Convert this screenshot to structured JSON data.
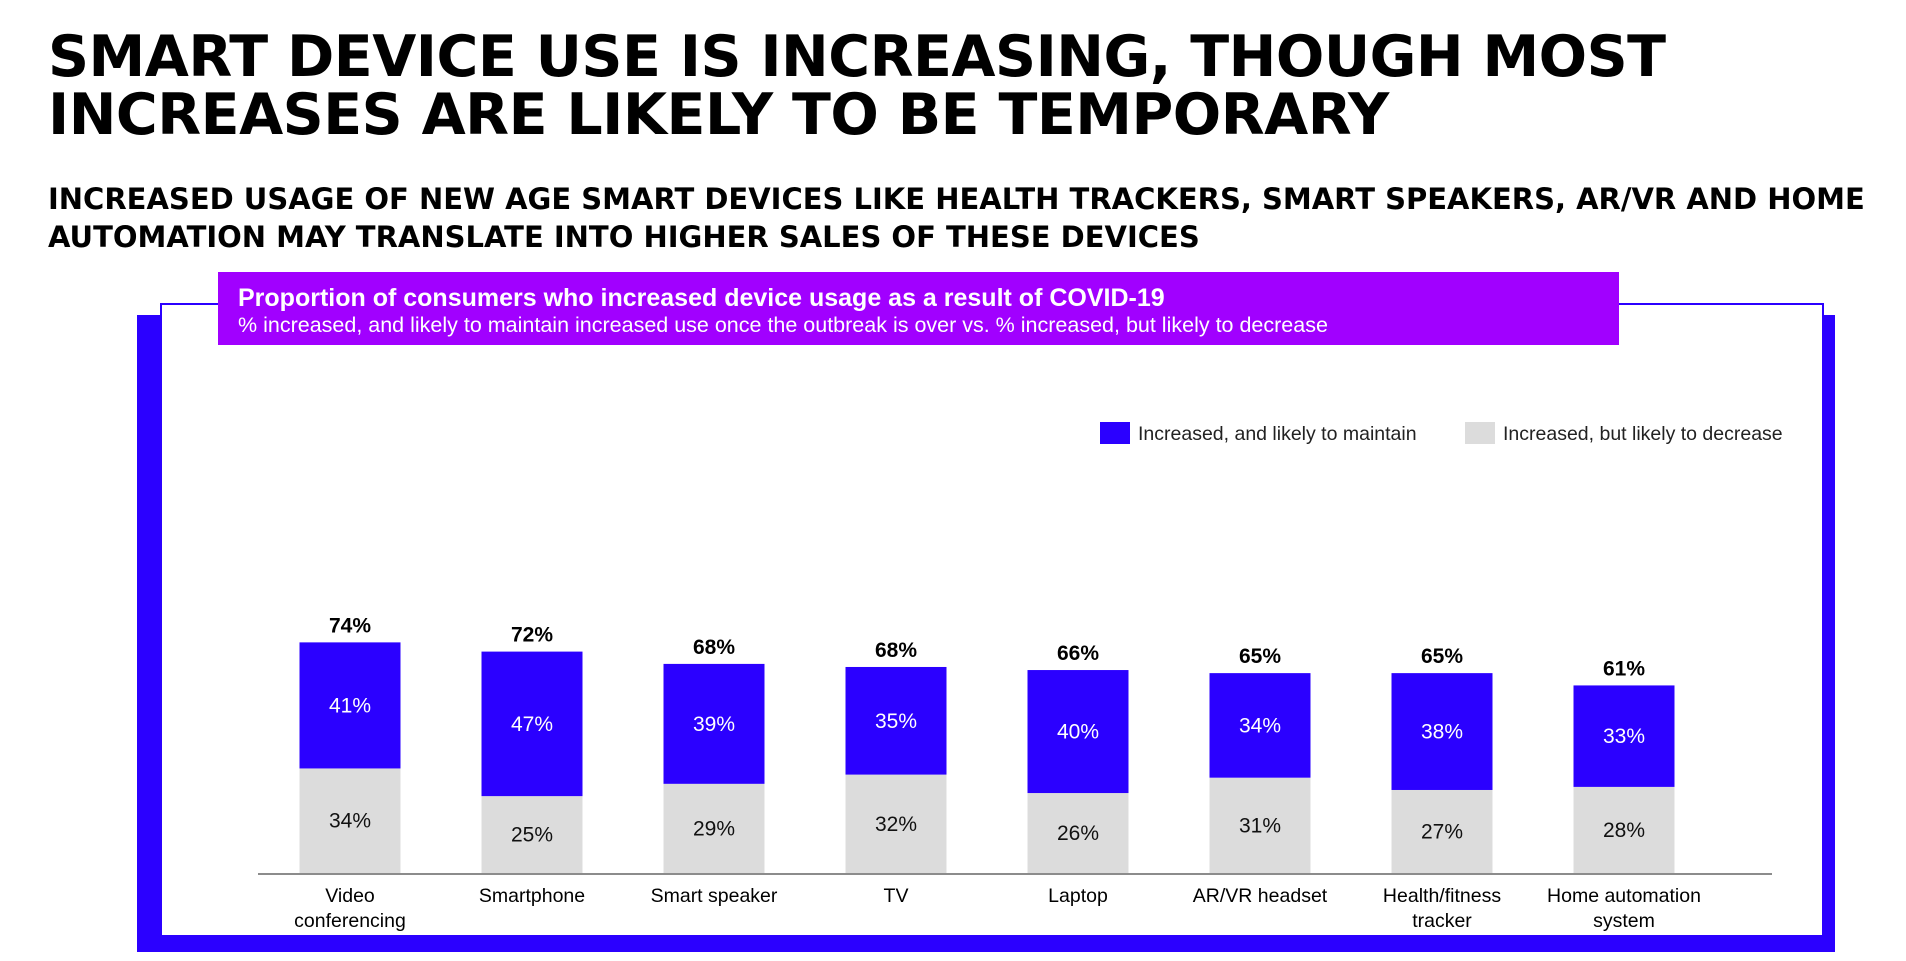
{
  "headline": "SMART DEVICE USE IS INCREASING, THOUGH MOST INCREASES ARE LIKELY TO BE TEMPORARY",
  "subheadline": "INCREASED USAGE OF NEW AGE SMART DEVICES LIKE HEALTH TRACKERS, SMART SPEAKERS, AR/VR AND HOME AUTOMATION MAY TRANSLATE INTO HIGHER SALES OF THESE DEVICES",
  "colors": {
    "maintain": "#2b00ff",
    "decrease": "#dcdcdc",
    "title_band": "#a100ff",
    "frame": "#2b00ff"
  },
  "chart_data": {
    "type": "bar",
    "stacked": true,
    "title": "Proportion of consumers who increased device usage as a result of COVID-19",
    "subtitle": "% increased, and likely to maintain increased use once the outbreak is over vs. % increased, but likely to decrease",
    "categories": [
      [
        "Video",
        "conferencing"
      ],
      [
        "Smartphone"
      ],
      [
        "Smart speaker"
      ],
      [
        "TV"
      ],
      [
        "Laptop"
      ],
      [
        "AR/VR headset"
      ],
      [
        "Health/fitness",
        "tracker"
      ],
      [
        "Home automation",
        "system"
      ]
    ],
    "series": [
      {
        "name": "Increased, and likely to maintain",
        "values": [
          41,
          47,
          39,
          35,
          40,
          34,
          38,
          33
        ]
      },
      {
        "name": "Increased, but likely to decrease",
        "values": [
          34,
          25,
          29,
          32,
          26,
          31,
          27,
          28
        ]
      }
    ],
    "totals": [
      "74%",
      "72%",
      "68%",
      "68%",
      "66%",
      "65%",
      "65%",
      "61%"
    ],
    "value_suffix": "%",
    "legend_position": "top-right",
    "ylim": [
      0,
      75
    ],
    "grid": false
  }
}
